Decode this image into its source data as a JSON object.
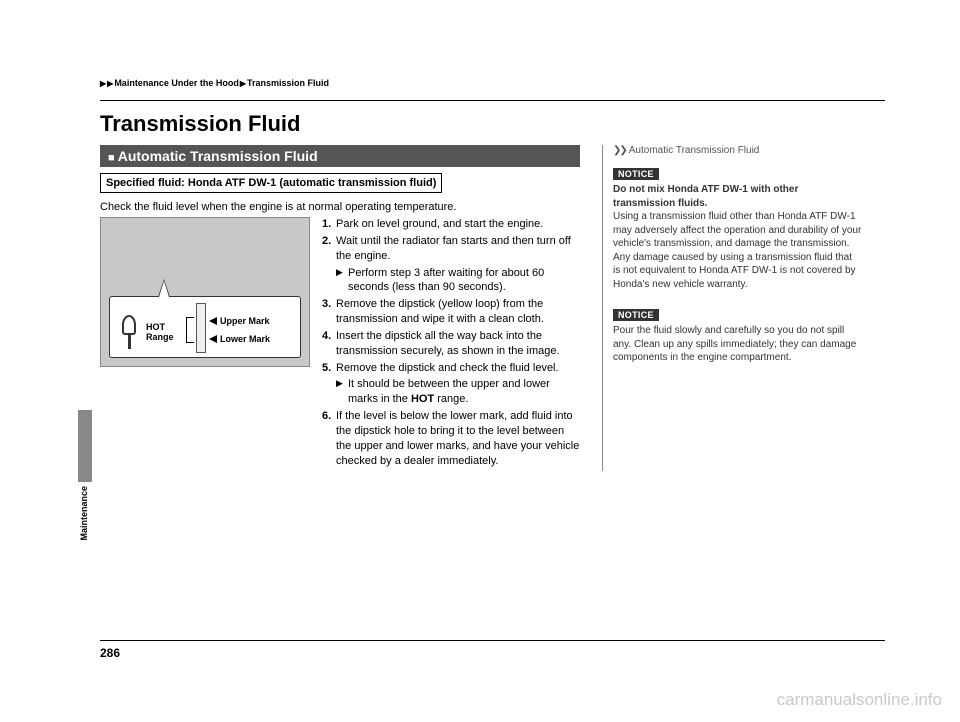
{
  "breadcrumb": {
    "a": "Maintenance Under the Hood",
    "b": "Transmission Fluid"
  },
  "page_title": "Transmission Fluid",
  "section_header": "Automatic Transmission Fluid",
  "spec_line": "Specified fluid: Honda ATF DW-1 (automatic transmission fluid)",
  "intro": "Check the fluid level when the engine is at normal operating temperature.",
  "figure": {
    "hot_label_1": "HOT",
    "hot_label_2": "Range",
    "upper_mark": "Upper Mark",
    "lower_mark": "Lower Mark"
  },
  "steps": {
    "s1": "Park on level ground, and start the engine.",
    "s2": "Wait until the radiator fan starts and then turn off the engine.",
    "s2a": "Perform step 3 after waiting for about 60 seconds (less than 90 seconds).",
    "s3": "Remove the dipstick (yellow loop) from the transmission and wipe it with a clean cloth.",
    "s4": "Insert the dipstick all the way back into the transmission securely, as shown in the image.",
    "s5": "Remove the dipstick and check the fluid level.",
    "s5a_pre": "It should be between the upper and lower marks in the ",
    "s5a_bold": "HOT",
    "s5a_post": " range.",
    "s6": "If the level is below the lower mark, add fluid into the dipstick hole to bring it to the level between the upper and lower marks, and have your vehicle checked by a dealer immediately."
  },
  "sidebar": {
    "heading": "Automatic Transmission Fluid",
    "notice_label": "NOTICE",
    "n1_lead": "Do not mix Honda ATF DW-1 with other transmission fluids.",
    "n1_body1": "Using a transmission fluid other than Honda ATF DW-1 may adversely affect the operation and durability of your vehicle's transmission, and damage the transmission.",
    "n1_body2": "Any damage caused by using a transmission fluid that is not equivalent to Honda ATF DW-1 is not covered by Honda's new vehicle warranty.",
    "n2_body": "Pour the fluid slowly and carefully so you do not spill any. Clean up any spills immediately; they can damage components in the engine compartment."
  },
  "side_tab_label": "Maintenance",
  "page_number": "286",
  "watermark": "carmanualsonline.info"
}
